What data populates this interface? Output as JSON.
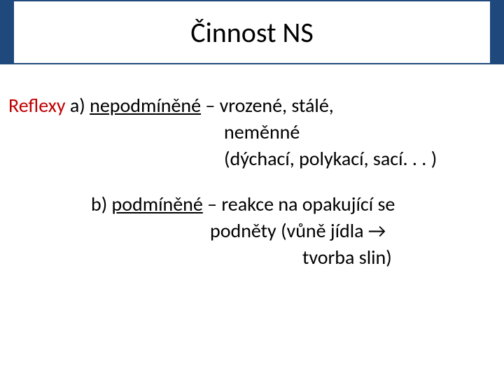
{
  "title": "Činnost NS",
  "colors": {
    "title_bar_bg": "#1f497d",
    "title_inner_bg": "#ffffff",
    "body_bg": "#ffffff",
    "text": "#000000",
    "accent_red": "#c00000"
  },
  "typography": {
    "title_fontsize_pt": 30,
    "body_fontsize_pt": 21,
    "font_family": "Calibri"
  },
  "section_a": {
    "label_red": "Reflexy",
    "marker": "a)",
    "term_underlined": "nepodmíněné",
    "line1_rest": " – vrozené, stálé,",
    "line2": "neměnné",
    "line3": "(dýchací, polykací, sací. . . )"
  },
  "section_b": {
    "marker": "b)",
    "term_underlined": "podmíněné",
    "line1_rest": " – reakce na opakující se",
    "line2": "podněty (vůně jídla →",
    "line3": "tvorba slin)"
  }
}
